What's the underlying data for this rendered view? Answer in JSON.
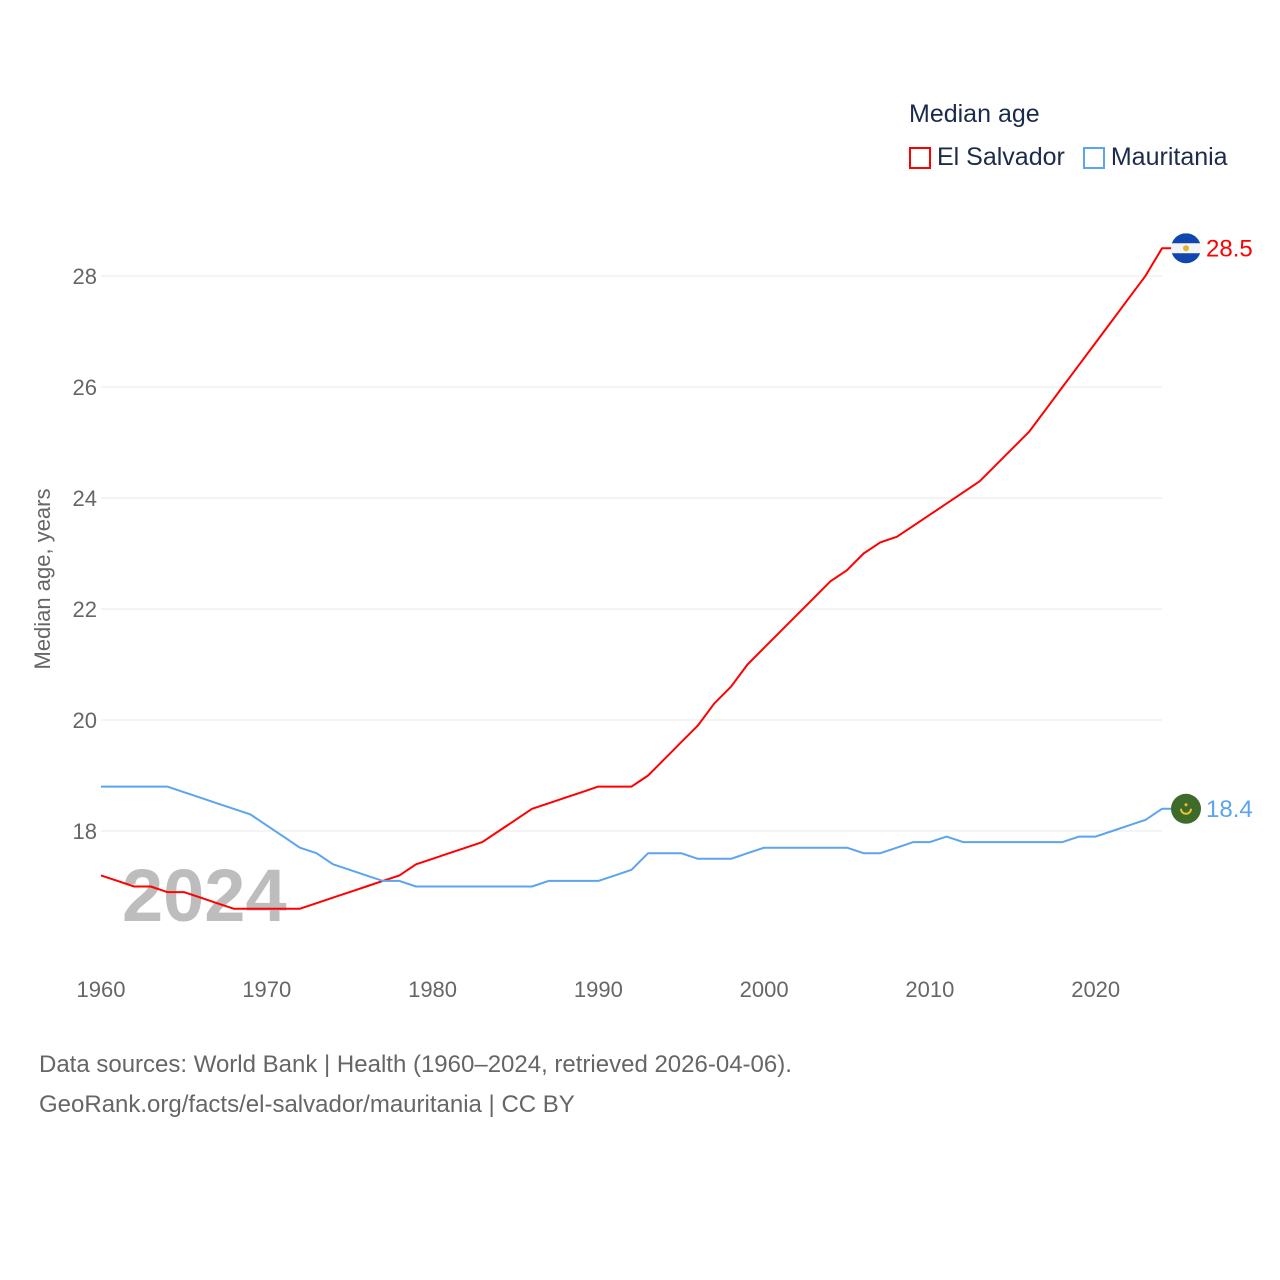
{
  "chart_data": {
    "type": "line",
    "title": "Median age",
    "ylabel": "Median age, years",
    "xlabel": "",
    "xlim": [
      1960,
      2024
    ],
    "ylim": [
      16,
      29
    ],
    "yticks": [
      18,
      20,
      22,
      24,
      26,
      28
    ],
    "xticks": [
      1960,
      1970,
      1980,
      1990,
      2000,
      2010,
      2020
    ],
    "grid": true,
    "legend_position": "top-right",
    "watermark_year": "2024",
    "x_start": 1960,
    "series": [
      {
        "name": "El Salvador",
        "color": "#ff0000",
        "end_label": "28.5",
        "flag": "el-salvador-flag",
        "values": [
          17.2,
          17.1,
          17.0,
          17.0,
          16.9,
          16.9,
          16.8,
          16.7,
          16.6,
          16.6,
          16.6,
          16.6,
          16.6,
          16.7,
          16.8,
          16.9,
          17.0,
          17.1,
          17.2,
          17.4,
          17.5,
          17.6,
          17.7,
          17.8,
          18.0,
          18.2,
          18.4,
          18.5,
          18.6,
          18.7,
          18.8,
          18.8,
          18.8,
          19.0,
          19.3,
          19.6,
          19.9,
          20.3,
          20.6,
          21.0,
          21.3,
          21.6,
          21.9,
          22.2,
          22.5,
          22.7,
          23.0,
          23.2,
          23.3,
          23.5,
          23.7,
          23.9,
          24.1,
          24.3,
          24.6,
          24.9,
          25.2,
          25.6,
          26.0,
          26.4,
          26.8,
          27.2,
          27.6,
          28.0,
          28.5
        ]
      },
      {
        "name": "Mauritania",
        "color": "#5ba4ee",
        "end_label": "18.4",
        "flag": "mauritania-flag",
        "values": [
          18.8,
          18.8,
          18.8,
          18.8,
          18.8,
          18.7,
          18.6,
          18.5,
          18.4,
          18.3,
          18.1,
          17.9,
          17.7,
          17.6,
          17.4,
          17.3,
          17.2,
          17.1,
          17.1,
          17.0,
          17.0,
          17.0,
          17.0,
          17.0,
          17.0,
          17.0,
          17.0,
          17.1,
          17.1,
          17.1,
          17.1,
          17.2,
          17.3,
          17.6,
          17.6,
          17.6,
          17.5,
          17.5,
          17.5,
          17.6,
          17.7,
          17.7,
          17.7,
          17.7,
          17.7,
          17.7,
          17.6,
          17.6,
          17.7,
          17.8,
          17.8,
          17.9,
          17.8,
          17.8,
          17.8,
          17.8,
          17.8,
          17.8,
          17.8,
          17.9,
          17.9,
          18.0,
          18.1,
          18.2,
          18.4
        ]
      }
    ]
  },
  "footer": {
    "line1": "Data sources: World Bank | Health (1960–2024, retrieved 2026-04-06).",
    "line2": "GeoRank.org/facts/el-salvador/mauritania | CC BY"
  }
}
